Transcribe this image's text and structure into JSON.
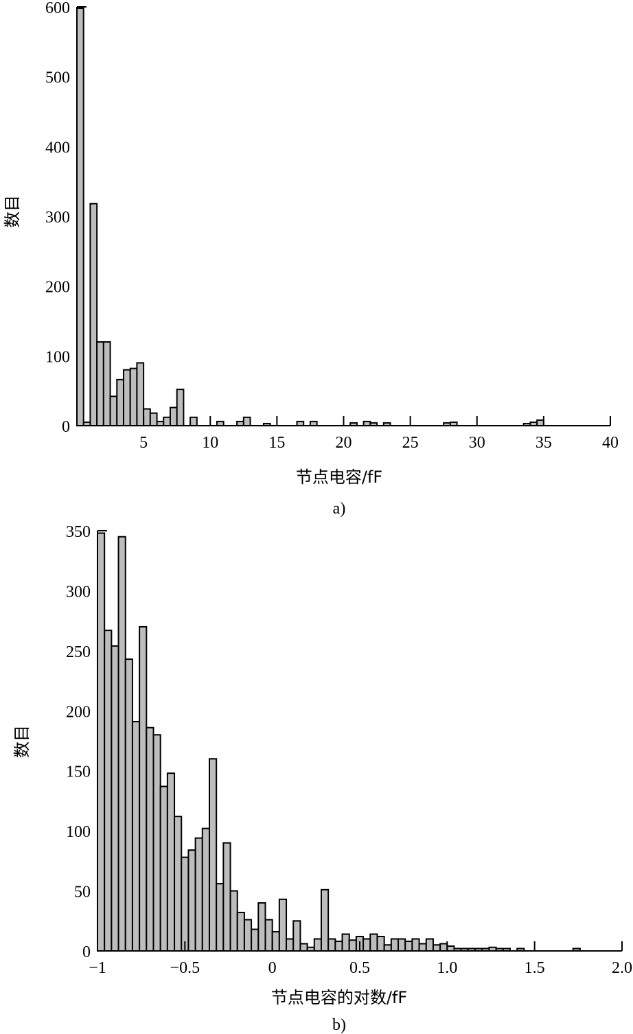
{
  "chart_data": [
    {
      "type": "bar",
      "xlabel": "节点电容/fF",
      "ylabel": "数目",
      "caption": "a)",
      "xlim": [
        0,
        40
      ],
      "ylim": [
        0,
        600
      ],
      "bin_width": 0.5,
      "x_ticks": [
        5,
        10,
        15,
        20,
        25,
        30,
        35,
        40
      ],
      "y_ticks": [
        0,
        100,
        200,
        300,
        400,
        500,
        600
      ],
      "x_tick_labels": [
        "5",
        "10",
        "15",
        "20",
        "25",
        "30",
        "35",
        "40"
      ],
      "y_tick_labels": [
        "0",
        "100",
        "200",
        "300",
        "400",
        "500",
        "600"
      ],
      "bins": [
        {
          "x": 0.0,
          "y": 598
        },
        {
          "x": 0.5,
          "y": 5
        },
        {
          "x": 1.0,
          "y": 318
        },
        {
          "x": 1.5,
          "y": 120
        },
        {
          "x": 2.0,
          "y": 120
        },
        {
          "x": 2.5,
          "y": 42
        },
        {
          "x": 3.0,
          "y": 66
        },
        {
          "x": 3.5,
          "y": 80
        },
        {
          "x": 4.0,
          "y": 82
        },
        {
          "x": 4.5,
          "y": 90
        },
        {
          "x": 5.0,
          "y": 24
        },
        {
          "x": 5.5,
          "y": 18
        },
        {
          "x": 6.0,
          "y": 6
        },
        {
          "x": 6.5,
          "y": 12
        },
        {
          "x": 7.0,
          "y": 26
        },
        {
          "x": 7.5,
          "y": 52
        },
        {
          "x": 8.5,
          "y": 12
        },
        {
          "x": 10.5,
          "y": 6
        },
        {
          "x": 12.0,
          "y": 6
        },
        {
          "x": 12.5,
          "y": 12
        },
        {
          "x": 14.0,
          "y": 3
        },
        {
          "x": 16.5,
          "y": 6
        },
        {
          "x": 17.5,
          "y": 6
        },
        {
          "x": 20.5,
          "y": 4
        },
        {
          "x": 21.5,
          "y": 6
        },
        {
          "x": 22.0,
          "y": 4
        },
        {
          "x": 23.0,
          "y": 4
        },
        {
          "x": 27.5,
          "y": 4
        },
        {
          "x": 28.0,
          "y": 5
        },
        {
          "x": 33.5,
          "y": 3
        },
        {
          "x": 34.0,
          "y": 5
        },
        {
          "x": 34.5,
          "y": 8
        }
      ]
    },
    {
      "type": "bar",
      "xlabel": "节点电容的对数/fF",
      "ylabel": "数目",
      "caption": "b)",
      "xlim": [
        -1,
        2
      ],
      "ylim": [
        0,
        350
      ],
      "bin_width": 0.04,
      "x_ticks": [
        -1,
        -0.5,
        0,
        0.5,
        1,
        1.5,
        2
      ],
      "y_ticks": [
        0,
        50,
        100,
        150,
        200,
        250,
        300,
        350
      ],
      "x_tick_labels": [
        "−1",
        "−0.5",
        "0",
        "0.5",
        "1.0",
        "1.5",
        "2.0"
      ],
      "y_tick_labels": [
        "0",
        "50",
        "100",
        "150",
        "200",
        "250",
        "300",
        "350"
      ],
      "bins": [
        {
          "x": -1.0,
          "y": 348
        },
        {
          "x": -0.96,
          "y": 267
        },
        {
          "x": -0.92,
          "y": 254
        },
        {
          "x": -0.88,
          "y": 345
        },
        {
          "x": -0.84,
          "y": 243
        },
        {
          "x": -0.8,
          "y": 191
        },
        {
          "x": -0.76,
          "y": 270
        },
        {
          "x": -0.72,
          "y": 186
        },
        {
          "x": -0.68,
          "y": 180
        },
        {
          "x": -0.64,
          "y": 137
        },
        {
          "x": -0.6,
          "y": 148
        },
        {
          "x": -0.56,
          "y": 112
        },
        {
          "x": -0.52,
          "y": 78
        },
        {
          "x": -0.48,
          "y": 84
        },
        {
          "x": -0.44,
          "y": 94
        },
        {
          "x": -0.4,
          "y": 102
        },
        {
          "x": -0.36,
          "y": 160
        },
        {
          "x": -0.32,
          "y": 56
        },
        {
          "x": -0.28,
          "y": 90
        },
        {
          "x": -0.24,
          "y": 50
        },
        {
          "x": -0.2,
          "y": 32
        },
        {
          "x": -0.16,
          "y": 26
        },
        {
          "x": -0.12,
          "y": 18
        },
        {
          "x": -0.08,
          "y": 40
        },
        {
          "x": -0.04,
          "y": 26
        },
        {
          "x": 0.0,
          "y": 16
        },
        {
          "x": 0.04,
          "y": 43
        },
        {
          "x": 0.08,
          "y": 10
        },
        {
          "x": 0.12,
          "y": 25
        },
        {
          "x": 0.16,
          "y": 6
        },
        {
          "x": 0.2,
          "y": 3
        },
        {
          "x": 0.24,
          "y": 10
        },
        {
          "x": 0.28,
          "y": 51
        },
        {
          "x": 0.32,
          "y": 10
        },
        {
          "x": 0.36,
          "y": 8
        },
        {
          "x": 0.4,
          "y": 14
        },
        {
          "x": 0.44,
          "y": 9
        },
        {
          "x": 0.48,
          "y": 12
        },
        {
          "x": 0.52,
          "y": 10
        },
        {
          "x": 0.56,
          "y": 14
        },
        {
          "x": 0.6,
          "y": 12
        },
        {
          "x": 0.64,
          "y": 5
        },
        {
          "x": 0.68,
          "y": 10
        },
        {
          "x": 0.72,
          "y": 10
        },
        {
          "x": 0.76,
          "y": 8
        },
        {
          "x": 0.8,
          "y": 10
        },
        {
          "x": 0.84,
          "y": 6
        },
        {
          "x": 0.88,
          "y": 10
        },
        {
          "x": 0.92,
          "y": 5
        },
        {
          "x": 0.96,
          "y": 6
        },
        {
          "x": 1.0,
          "y": 4
        },
        {
          "x": 1.04,
          "y": 2
        },
        {
          "x": 1.08,
          "y": 2
        },
        {
          "x": 1.12,
          "y": 2
        },
        {
          "x": 1.16,
          "y": 2
        },
        {
          "x": 1.2,
          "y": 2
        },
        {
          "x": 1.24,
          "y": 3
        },
        {
          "x": 1.28,
          "y": 2
        },
        {
          "x": 1.32,
          "y": 2
        },
        {
          "x": 1.4,
          "y": 2
        },
        {
          "x": 1.72,
          "y": 2
        }
      ]
    }
  ]
}
